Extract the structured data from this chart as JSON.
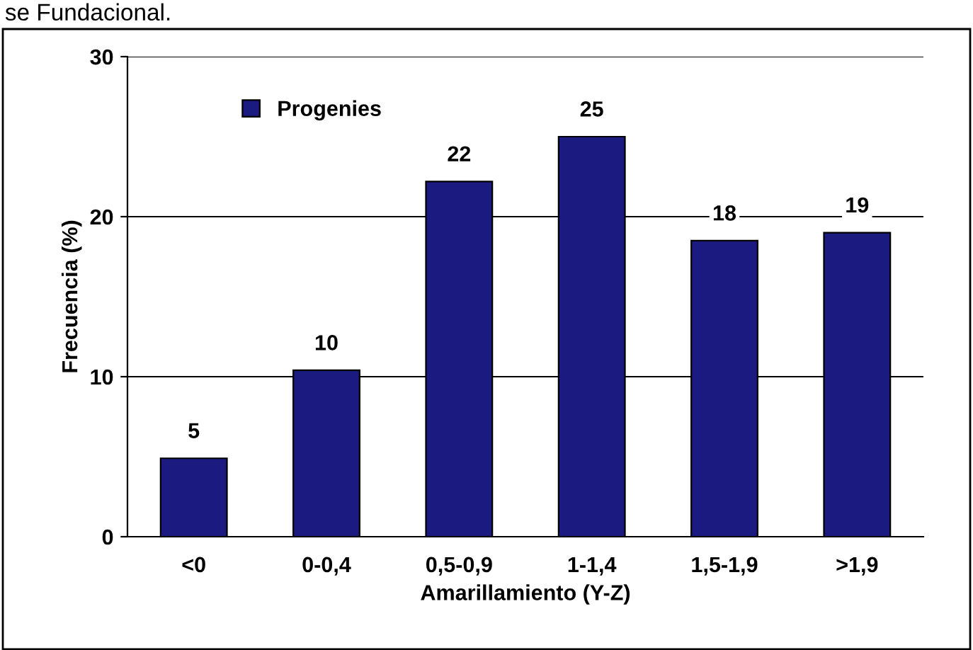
{
  "chart_data": {
    "type": "bar",
    "categories": [
      "<0",
      "0-0,4",
      "0,5-0,9",
      "1-1,4",
      "1,5-1,9",
      ">1,9"
    ],
    "series": [
      {
        "name": "Progenies",
        "color": "#1a1a80",
        "values": [
          4.9,
          10.4,
          22.2,
          25.0,
          18.5,
          19.0
        ],
        "value_labels": [
          "5",
          "10",
          "22",
          "25",
          "18",
          "19"
        ]
      }
    ],
    "xlabel": "Amarillamiento (Y-Z)",
    "ylabel": "Frecuencia (%)",
    "annotations": [
      "se Fundacional."
    ],
    "ylim": [
      0,
      30
    ],
    "yticks": [
      0,
      10,
      20,
      30
    ],
    "grid": "y",
    "legend": "top left"
  }
}
